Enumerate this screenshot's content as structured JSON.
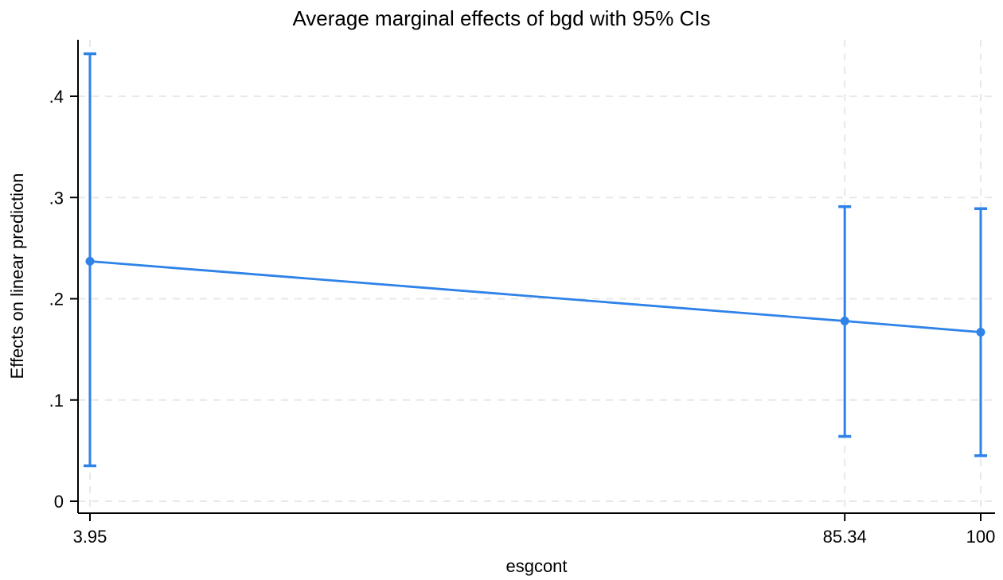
{
  "chart_data": {
    "type": "line",
    "title": "Average marginal effects of bgd with 95% CIs",
    "xlabel": "esgcont",
    "ylabel": "Effects on linear prediction",
    "x": [
      3.95,
      85.34,
      100
    ],
    "series": [
      {
        "name": "Average marginal effect of bgd",
        "values": [
          0.237,
          0.178,
          0.167
        ],
        "ci_low": [
          0.035,
          0.064,
          0.045
        ],
        "ci_high": [
          0.442,
          0.291,
          0.289
        ]
      }
    ],
    "xticks": [
      3.95,
      85.34,
      100
    ],
    "xtick_labels": [
      "3.95",
      "85.34",
      "100"
    ],
    "yticks": [
      0,
      0.1,
      0.2,
      0.3,
      0.4
    ],
    "ytick_labels": [
      "0",
      ".1",
      ".2",
      ".3",
      ".4"
    ],
    "xlim": [
      2.66,
      101.55
    ],
    "ylim": [
      -0.012,
      0.457
    ],
    "grid": true,
    "grid_style": "dashed",
    "legend_position": "none"
  },
  "colors": {
    "marker": "#2E82E8",
    "ci_bar": "#2E82E8",
    "connect_line": "#2E82E8",
    "gridline": "#E8E8E8",
    "axis": "#000000",
    "text": "#000000",
    "background": "#FFFFFF"
  }
}
